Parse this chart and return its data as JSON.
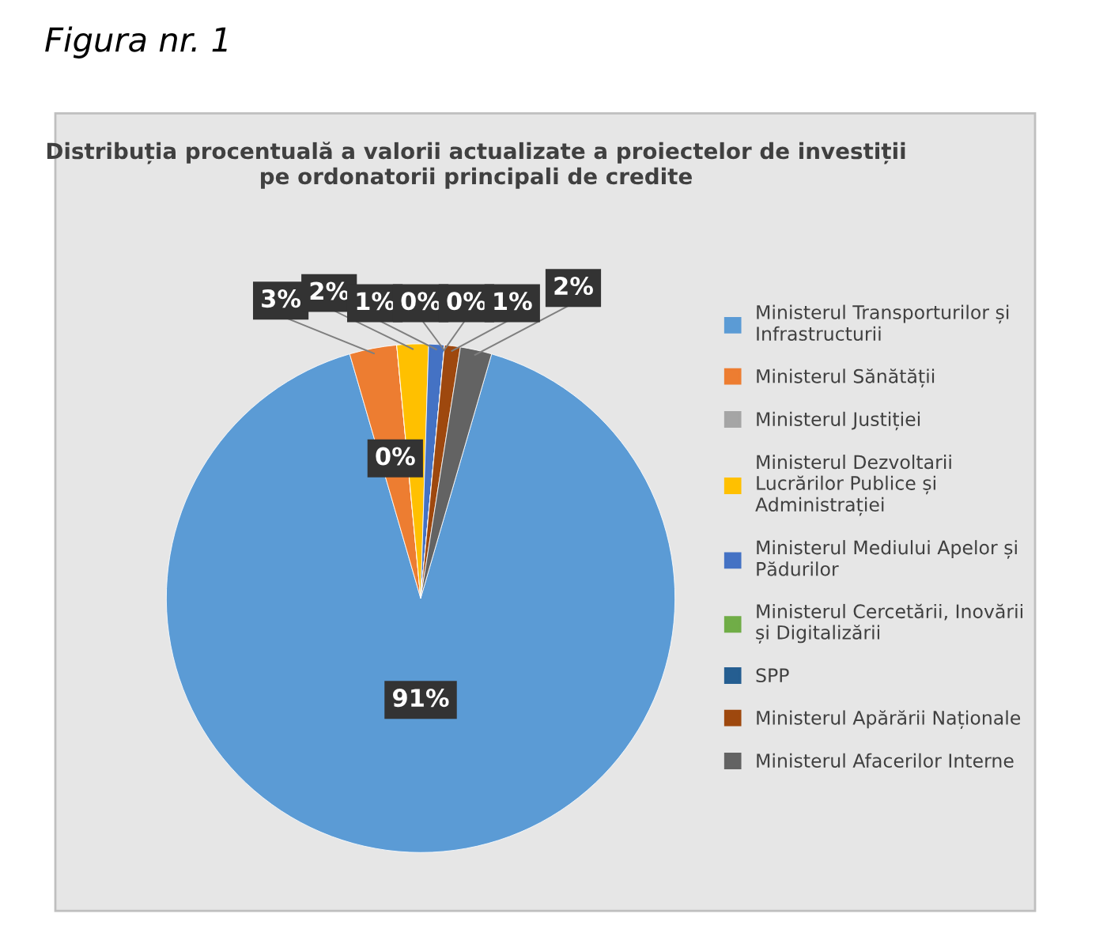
{
  "chart_data": {
    "type": "pie",
    "title": "Distribuția procentuală a valorii actualizate a proiectelor de investiții pe ordonatorii principali de credite",
    "categories": [
      "Ministerul Transporturilor și Infrastructurii",
      "Ministerul Sănătății",
      "Ministerul Justiției",
      "Ministerul Dezvoltarii Lucrărilor Publice și Administrației",
      "Ministerul Mediului Apelor și Pădurilor",
      "Ministerul Cercetării, Inovării și Digitalizării",
      "SPP",
      "Ministerul Apărării Naționale",
      "Ministerul Afacerilor Interne"
    ],
    "values": [
      91,
      3,
      0,
      2,
      1,
      0,
      0,
      1,
      2
    ],
    "colors": [
      "#5b9bd5",
      "#ed7d31",
      "#a5a5a5",
      "#ffc000",
      "#4472c4",
      "#70ad47",
      "#255e91",
      "#9e480e",
      "#636363"
    ],
    "value_labels": [
      "91%",
      "3%",
      "0%",
      "2%",
      "1%",
      "0%",
      "0%",
      "1%",
      "2%"
    ],
    "legend": "right",
    "annotations": [
      "Figura nr. 1"
    ]
  }
}
